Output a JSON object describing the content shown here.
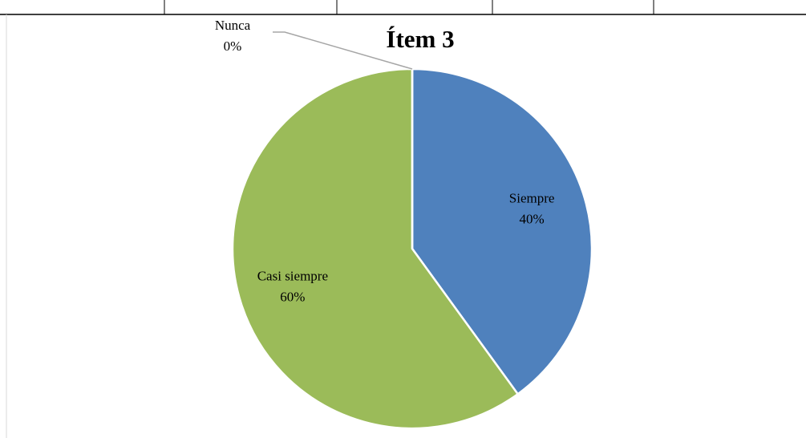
{
  "chart_data": {
    "type": "pie",
    "title": "Ítem 3",
    "categories": [
      "Siempre",
      "Casi siempre",
      "Nunca"
    ],
    "values": [
      40,
      60,
      0
    ],
    "value_labels": [
      "40%",
      "60%",
      "0%"
    ],
    "colors": [
      "#4f81bd",
      "#9bbb59",
      "#c0504d"
    ]
  }
}
